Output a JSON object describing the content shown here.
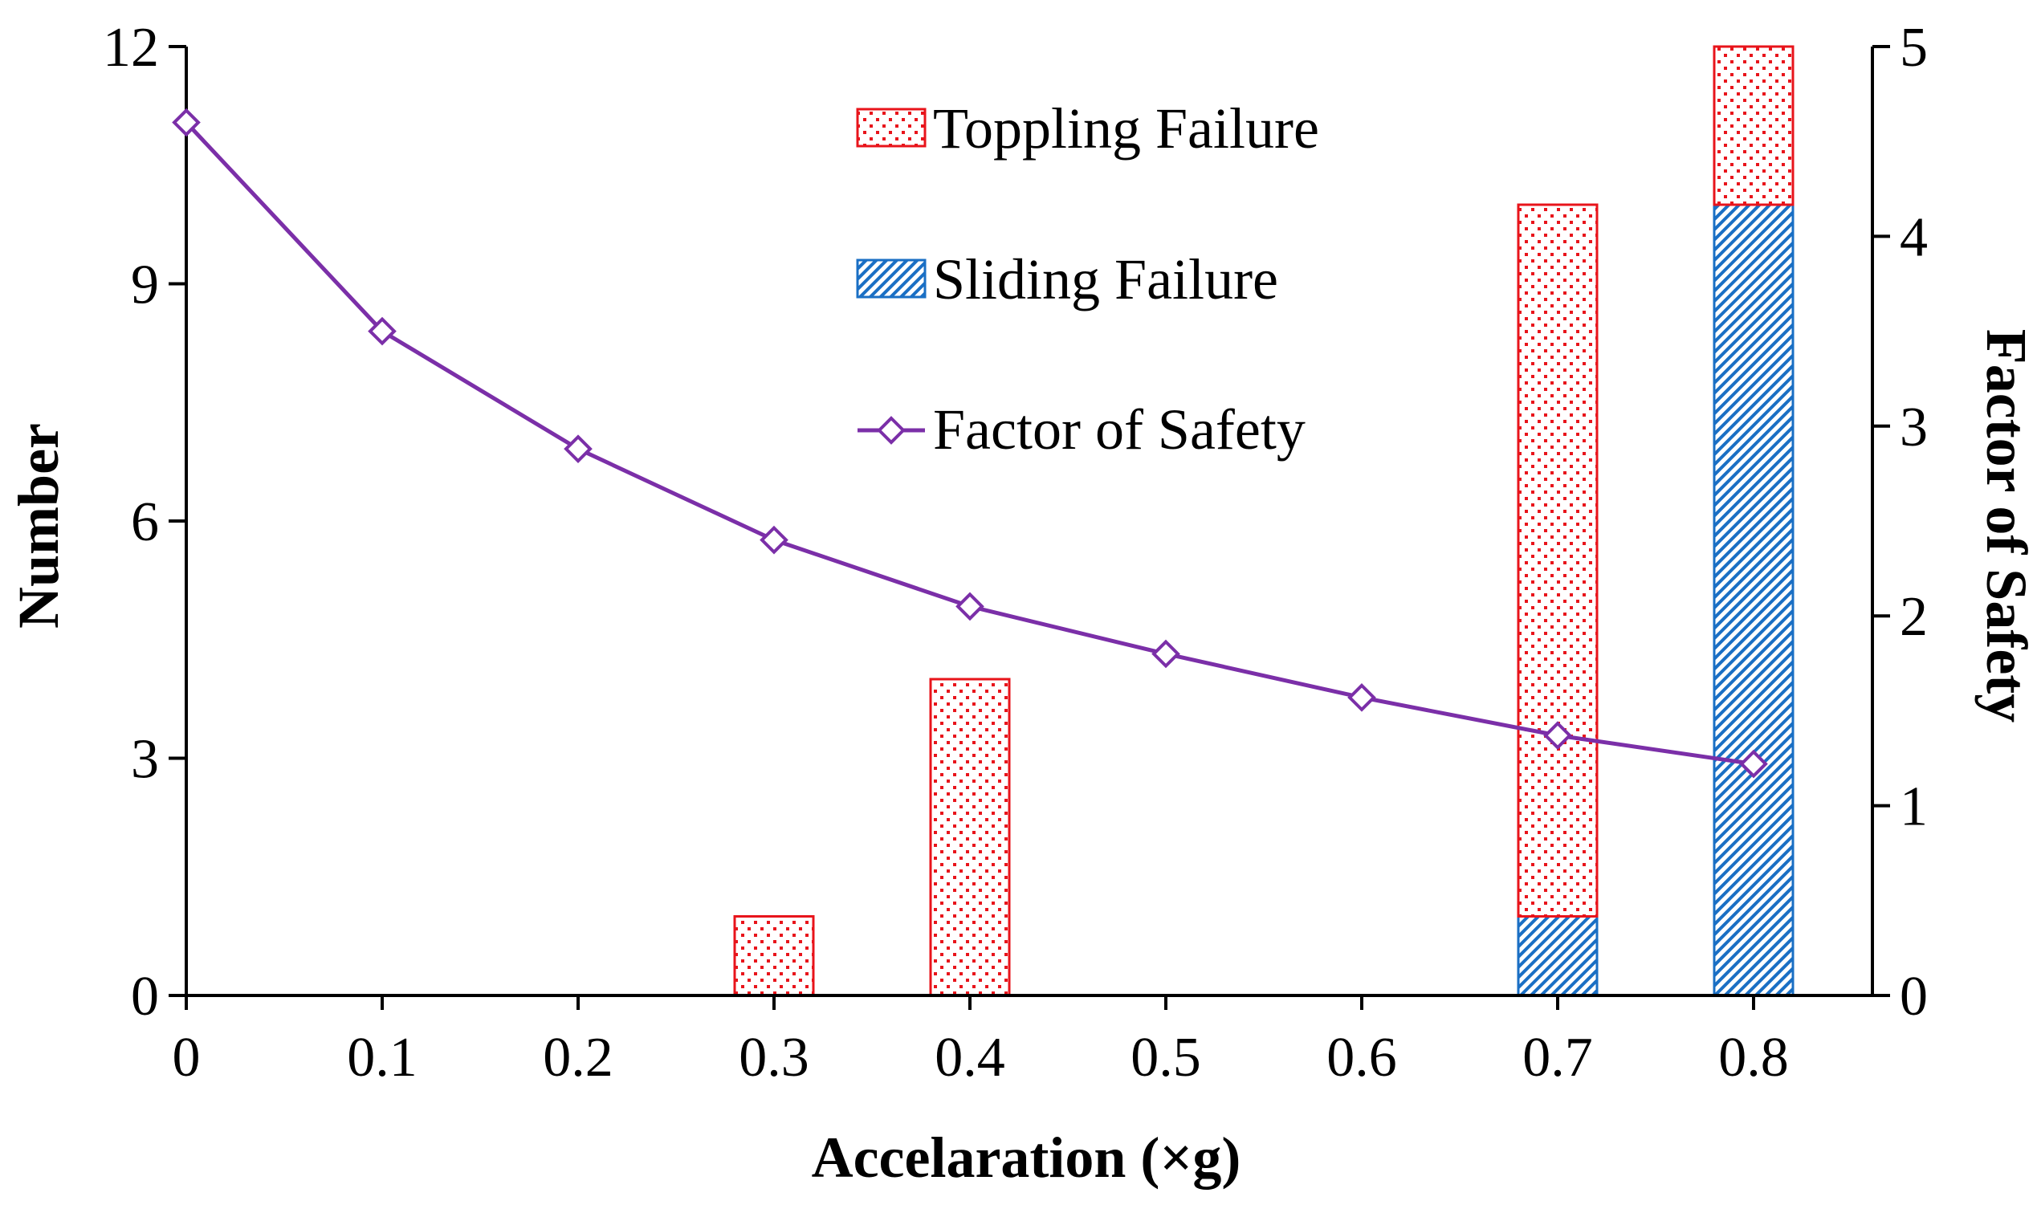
{
  "chart_data": {
    "type": "bar+line",
    "x_categories": [
      "0",
      "0.1",
      "0.2",
      "0.3",
      "0.4",
      "0.5",
      "0.6",
      "0.7",
      "0.8"
    ],
    "x_values": [
      0,
      0.1,
      0.2,
      0.3,
      0.4,
      0.5,
      0.6,
      0.7,
      0.8
    ],
    "xlabel": "Accelaration (×g)",
    "ylabel_left": "Number",
    "ylabel_right": "Factor of Safety",
    "ylim_left": [
      0,
      12
    ],
    "yticks_left": [
      0,
      3,
      6,
      9,
      12
    ],
    "ylim_right": [
      0,
      5
    ],
    "yticks_right": [
      0,
      1,
      2,
      3,
      4,
      5
    ],
    "bar_series": [
      {
        "name": "Sliding Failure",
        "stack_order": 0,
        "color": "#1a6fc4",
        "pattern": "diagonal-hatch",
        "values": [
          0,
          0,
          0,
          0,
          0,
          0,
          0,
          1,
          10
        ]
      },
      {
        "name": "Toppling Failure",
        "stack_order": 1,
        "color": "#e8141b",
        "pattern": "dots",
        "values": [
          0,
          0,
          0,
          1,
          4,
          0,
          0,
          9,
          2
        ]
      }
    ],
    "line_series": {
      "name": "Factor of Safety",
      "axis": "right",
      "color": "#7b2fa8",
      "marker": "diamond",
      "values": [
        4.6,
        3.5,
        2.88,
        2.4,
        2.05,
        1.8,
        1.57,
        1.37,
        1.22
      ]
    },
    "legend": {
      "position": "top-center",
      "items": [
        {
          "label": "Toppling Failure",
          "kind": "bar",
          "series": "Toppling Failure"
        },
        {
          "label": "Sliding Failure",
          "kind": "bar",
          "series": "Sliding Failure"
        },
        {
          "label": "Factor of Safety",
          "kind": "line",
          "series": "Factor of Safety"
        }
      ]
    }
  }
}
